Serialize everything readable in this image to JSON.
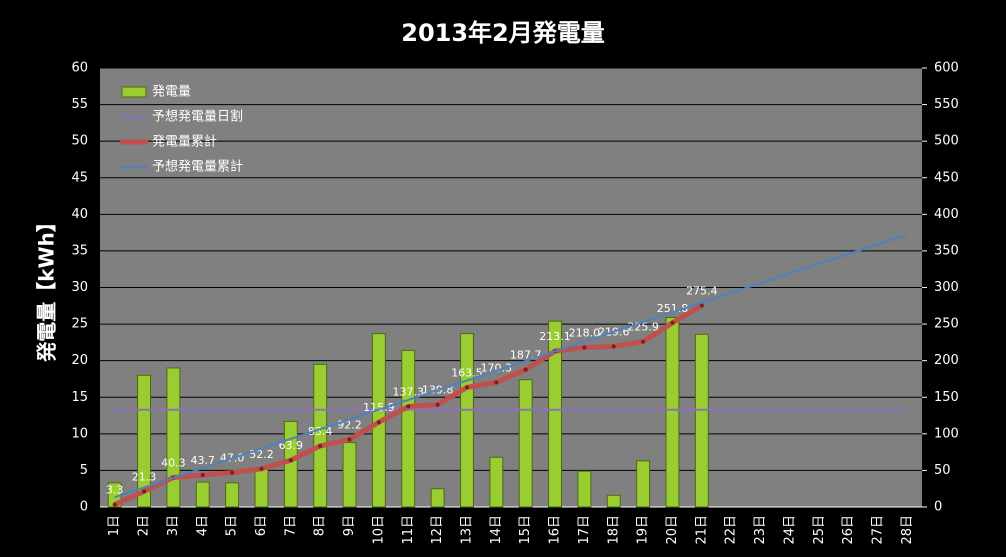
{
  "chart_data": {
    "type": "combo",
    "title": "2013年2月発電量",
    "y_label": "発電量【kWh】",
    "categories": [
      "1日",
      "2日",
      "3日",
      "4日",
      "5日",
      "6日",
      "7日",
      "8日",
      "9日",
      "10日",
      "11日",
      "12日",
      "13日",
      "14日",
      "15日",
      "16日",
      "17日",
      "18日",
      "19日",
      "20日",
      "21日",
      "22日",
      "23日",
      "24日",
      "25日",
      "26日",
      "27日",
      "28日"
    ],
    "series": [
      {
        "name": "発電量",
        "type": "bar",
        "color": "#9acd32",
        "axis": "y",
        "values": [
          3.3,
          18.0,
          19.0,
          3.4,
          3.3,
          5.2,
          11.7,
          19.5,
          8.8,
          23.7,
          21.4,
          2.5,
          23.7,
          6.8,
          17.4,
          25.4,
          4.9,
          1.6,
          6.3,
          25.9,
          23.6,
          null,
          null,
          null,
          null,
          null,
          null,
          null
        ]
      },
      {
        "name": "予想発電量日割",
        "type": "line",
        "color": "#8e6fc0",
        "axis": "y",
        "values": [
          13.3,
          13.3,
          13.3,
          13.3,
          13.3,
          13.3,
          13.3,
          13.3,
          13.3,
          13.3,
          13.3,
          13.3,
          13.3,
          13.3,
          13.3,
          13.3,
          13.3,
          13.3,
          13.3,
          13.3,
          13.3,
          13.3,
          13.3,
          13.3,
          13.3,
          13.3,
          13.3,
          13.3
        ]
      },
      {
        "name": "発電量累計",
        "type": "line",
        "color": "#c0504d",
        "axis": "y2",
        "markers": true,
        "values": [
          3.3,
          21.3,
          40.3,
          43.7,
          47.0,
          52.2,
          63.9,
          83.4,
          92.2,
          115.9,
          137.3,
          139.8,
          163.5,
          170.3,
          187.7,
          213.1,
          218.0,
          219.6,
          225.9,
          251.8,
          275.4,
          null,
          null,
          null,
          null,
          null,
          null,
          null
        ],
        "value_labels": [
          "3.3",
          "21.3",
          "40.3",
          "43.7",
          "47.0",
          "52.2",
          "63.9",
          "83.4",
          "92.2",
          "115.9",
          "137.3",
          "139.8",
          "163.5",
          "170.3",
          "187.7",
          "213.1",
          "218.0",
          "219.6",
          "225.9",
          "251.8",
          "275.4",
          null,
          null,
          null,
          null,
          null,
          null,
          null
        ]
      },
      {
        "name": "予想発電量累計",
        "type": "line",
        "color": "#4f81bd",
        "axis": "y2",
        "values": [
          13.3,
          26.6,
          39.9,
          53.2,
          66.5,
          79.8,
          93.1,
          106.4,
          119.7,
          133.0,
          146.3,
          159.6,
          172.9,
          186.2,
          199.5,
          212.8,
          226.1,
          239.4,
          252.7,
          266.0,
          279.3,
          292.6,
          305.9,
          319.2,
          332.5,
          345.8,
          359.1,
          372.4
        ]
      }
    ],
    "ylim": [
      0,
      60
    ],
    "yticks": [
      0,
      5,
      10,
      15,
      20,
      25,
      30,
      35,
      40,
      45,
      50,
      55,
      60
    ],
    "y2lim": [
      0,
      600
    ],
    "y2ticks": [
      0,
      50,
      100,
      150,
      200,
      250,
      300,
      350,
      400,
      450,
      500,
      550,
      600
    ],
    "grid": true,
    "legend": "top-left"
  }
}
